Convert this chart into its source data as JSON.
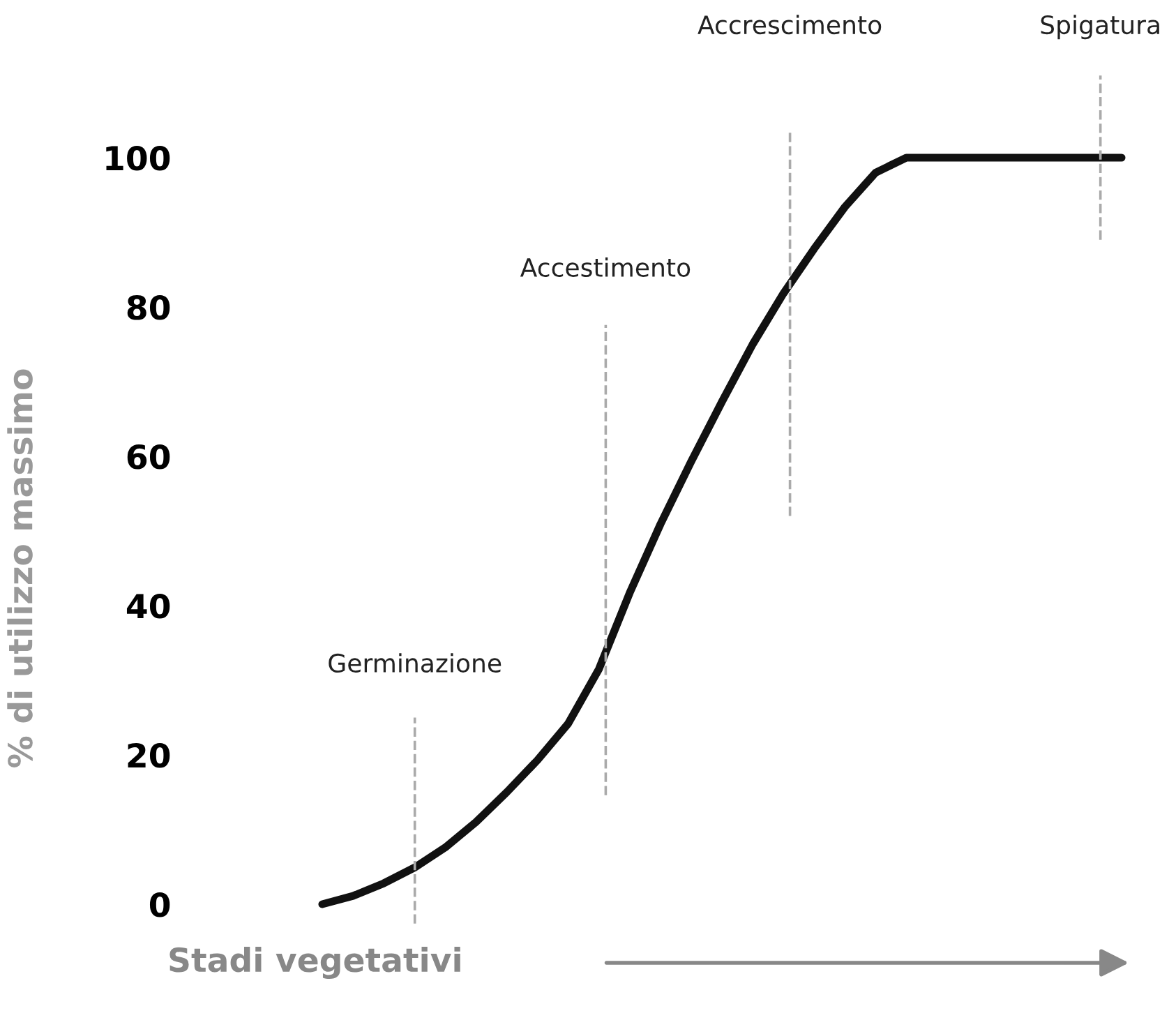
{
  "chart_data": {
    "type": "line",
    "xlabel": "Stadi vegetativi",
    "ylabel": "% di utilizzo massimo",
    "ylim": [
      0,
      100
    ],
    "yticks": [
      0,
      20,
      40,
      60,
      80,
      100
    ],
    "tick_labels": "y",
    "grid": false,
    "legend": false,
    "categories": [
      null,
      null,
      null,
      null,
      null,
      null,
      null,
      null,
      null,
      null,
      null,
      null,
      null,
      null,
      null,
      null,
      null,
      null,
      null,
      null,
      null,
      null,
      null,
      null,
      null,
      null,
      null
    ],
    "series": [
      {
        "color": "#111111",
        "values": [
          0,
          1.1,
          2.8,
          4.9,
          7.6,
          11,
          15,
          19.3,
          24.2,
          31.5,
          41.7,
          50.9,
          59.3,
          67.3,
          75,
          81.8,
          87.8,
          93.4,
          98,
          100,
          100,
          100,
          100,
          100,
          100,
          100,
          100
        ]
      }
    ],
    "line_style": "solid",
    "annotations": [
      "Germinazione",
      "Accestimento",
      "Accrescimento",
      "Spigatura"
    ]
  }
}
